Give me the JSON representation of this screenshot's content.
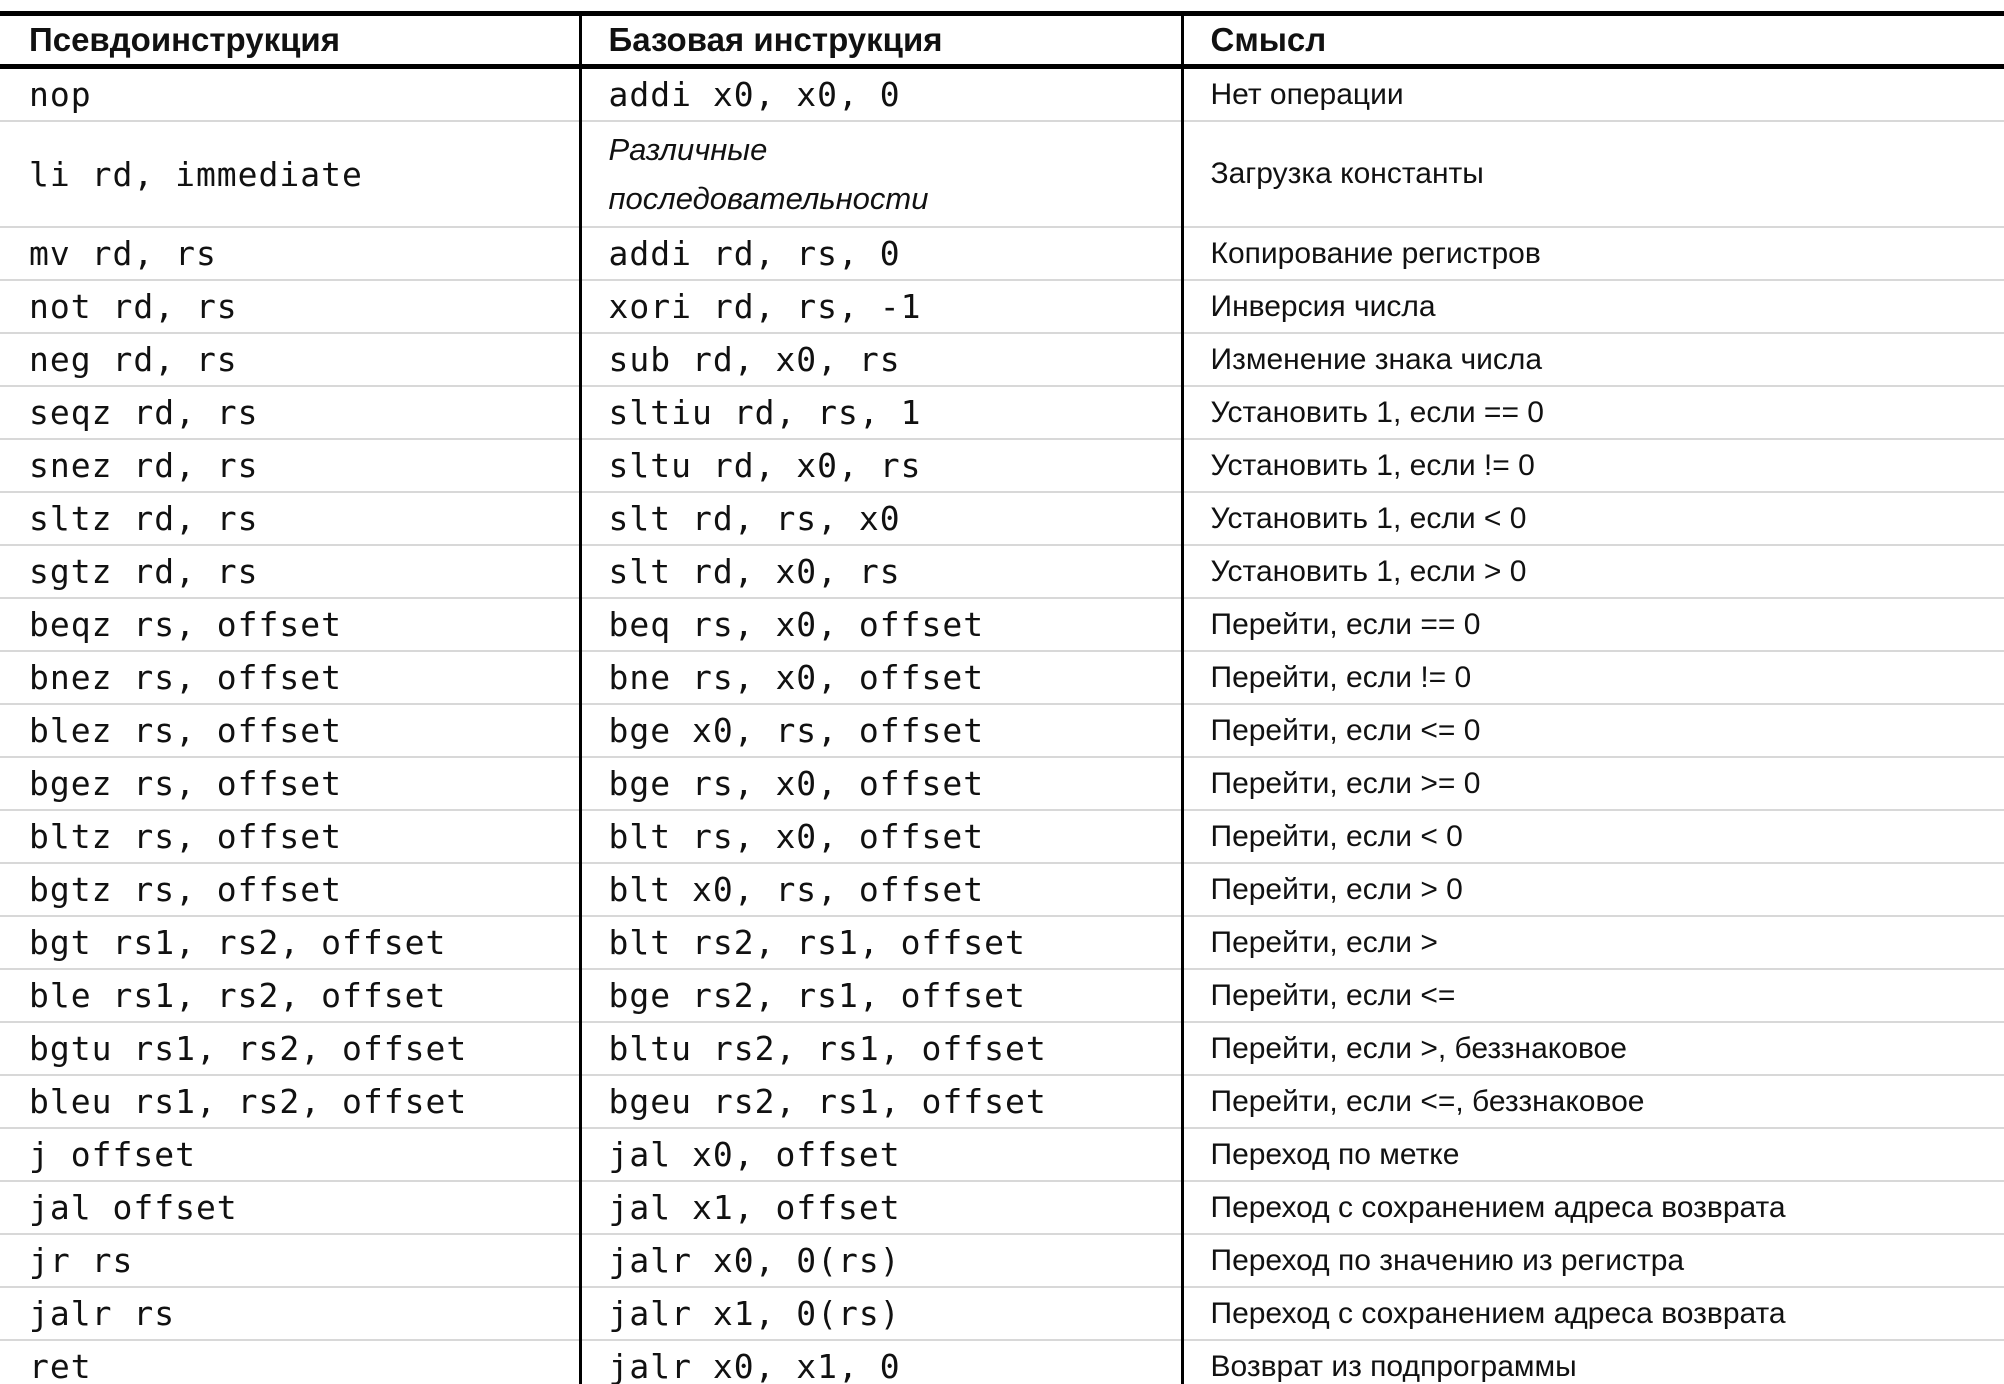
{
  "colors": {
    "strong_border": "#000000",
    "row_divider": "#d8d8d8",
    "text": "#111111",
    "background": "#ffffff"
  },
  "table": {
    "headers": [
      "Псевдоинструкция",
      "Базовая инструкция",
      "Смысл"
    ],
    "rows": [
      {
        "pseudo": "nop",
        "base": "addi x0, x0, 0",
        "meaning": "Нет операции"
      },
      {
        "pseudo": "li rd, immediate",
        "base": "Различные\nпоследовательности",
        "meaning": "Загрузка константы",
        "base_style": "italic"
      },
      {
        "pseudo": "mv rd, rs",
        "base": "addi rd, rs, 0",
        "meaning": "Копирование регистров"
      },
      {
        "pseudo": "not rd, rs",
        "base": "xori rd, rs, -1",
        "meaning": "Инверсия числа"
      },
      {
        "pseudo": "neg rd, rs",
        "base": "sub rd, x0, rs",
        "meaning": "Изменение знака числа"
      },
      {
        "pseudo": "seqz rd, rs",
        "base": "sltiu rd, rs, 1",
        "meaning": "Установить 1, если == 0"
      },
      {
        "pseudo": "snez rd, rs",
        "base": "sltu rd, x0, rs",
        "meaning": "Установить 1, если != 0"
      },
      {
        "pseudo": "sltz rd, rs",
        "base": "slt rd, rs, x0",
        "meaning": "Установить 1, если < 0"
      },
      {
        "pseudo": "sgtz rd, rs",
        "base": "slt rd, x0, rs",
        "meaning": "Установить 1, если > 0"
      },
      {
        "pseudo": "beqz rs, offset",
        "base": "beq rs, x0, offset",
        "meaning": "Перейти, если == 0"
      },
      {
        "pseudo": "bnez rs, offset",
        "base": "bne rs, x0, offset",
        "meaning": "Перейти, если != 0"
      },
      {
        "pseudo": "blez rs, offset",
        "base": "bge x0, rs, offset",
        "meaning": "Перейти, если <= 0"
      },
      {
        "pseudo": "bgez rs, offset",
        "base": "bge rs, x0, offset",
        "meaning": "Перейти, если >= 0"
      },
      {
        "pseudo": "bltz rs, offset",
        "base": "blt rs, x0, offset",
        "meaning": "Перейти, если < 0"
      },
      {
        "pseudo": "bgtz rs, offset",
        "base": "blt x0, rs, offset",
        "meaning": "Перейти, если > 0"
      },
      {
        "pseudo": "bgt rs1, rs2, offset",
        "base": "blt rs2, rs1, offset",
        "meaning": "Перейти, если >"
      },
      {
        "pseudo": "ble rs1, rs2, offset",
        "base": "bge rs2, rs1, offset",
        "meaning": "Перейти, если <="
      },
      {
        "pseudo": "bgtu rs1, rs2, offset",
        "base": "bltu rs2, rs1, offset",
        "meaning": "Перейти, если >, беззнаковое"
      },
      {
        "pseudo": "bleu rs1, rs2, offset",
        "base": "bgeu rs2, rs1, offset",
        "meaning": "Перейти, если <=, беззнаковое"
      },
      {
        "pseudo": "j offset",
        "base": "jal x0, offset",
        "meaning": "Переход по метке"
      },
      {
        "pseudo": "jal offset",
        "base": "jal x1, offset",
        "meaning": "Переход с сохранением адреса возврата"
      },
      {
        "pseudo": "jr rs",
        "base": "jalr x0, 0(rs)",
        "meaning": "Переход по значению из регистра"
      },
      {
        "pseudo": "jalr rs",
        "base": "jalr x1, 0(rs)",
        "meaning": "Переход с сохранением адреса возврата"
      },
      {
        "pseudo": "ret",
        "base": "jalr x0, x1, 0",
        "meaning": "Возврат из подпрограммы"
      }
    ]
  }
}
